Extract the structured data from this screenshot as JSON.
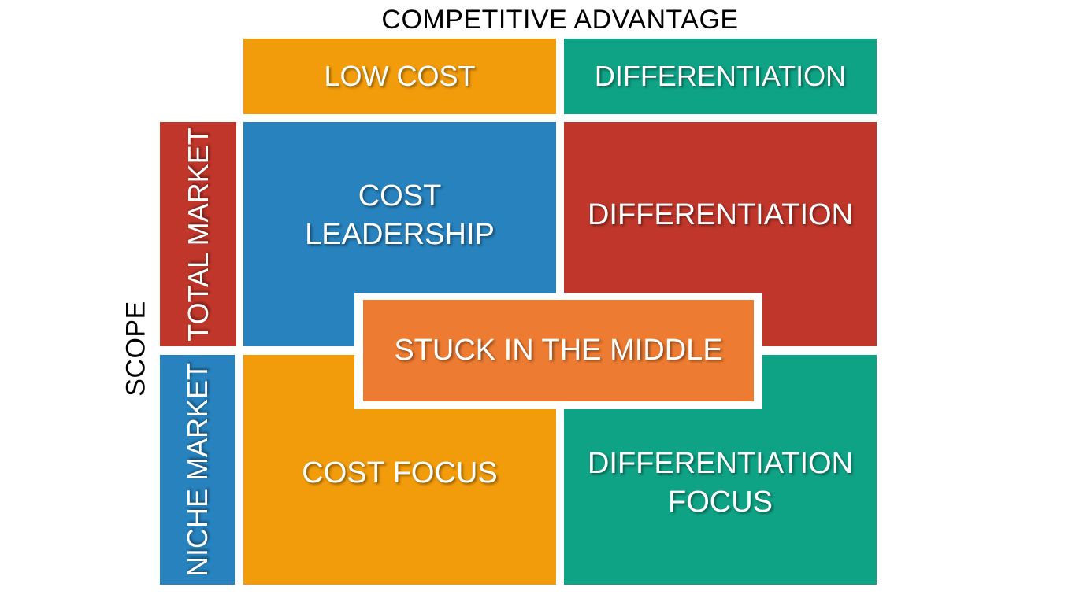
{
  "axes": {
    "top_title": "COMPETITIVE ADVANTAGE",
    "left_title": "SCOPE"
  },
  "columns": [
    {
      "label": "LOW COST",
      "color": "#f29c0b"
    },
    {
      "label": "DIFFERENTIATION",
      "color": "#0fa386"
    }
  ],
  "rows": [
    {
      "label": "TOTAL MARKET",
      "color": "#c0362a"
    },
    {
      "label": "NICHE MARKET",
      "color": "#2782bd"
    }
  ],
  "quadrants": {
    "top_left": {
      "line1": "COST",
      "line2": "LEADERSHIP",
      "color": "#2782bd"
    },
    "top_right": {
      "line1": "DIFFERENTIATION",
      "color": "#c0362a"
    },
    "bottom_left": {
      "line1": "COST FOCUS",
      "color": "#f29c0b"
    },
    "bottom_right": {
      "line1": "DIFFERENTIATION",
      "line2": "FOCUS",
      "color": "#0fa386"
    }
  },
  "center": {
    "label": "STUCK IN THE MIDDLE",
    "color": "#ed7b31"
  }
}
